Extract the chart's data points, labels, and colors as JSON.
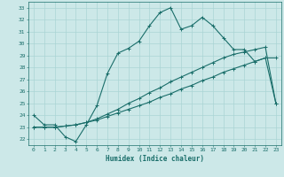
{
  "xlabel": "Humidex (Indice chaleur)",
  "xlim": [
    -0.5,
    23.5
  ],
  "ylim": [
    21.5,
    33.5
  ],
  "xticks": [
    0,
    1,
    2,
    3,
    4,
    5,
    6,
    7,
    8,
    9,
    10,
    11,
    12,
    13,
    14,
    15,
    16,
    17,
    18,
    19,
    20,
    21,
    22,
    23
  ],
  "yticks": [
    22,
    23,
    24,
    25,
    26,
    27,
    28,
    29,
    30,
    31,
    32,
    33
  ],
  "bg_color": "#cce8e8",
  "line_color": "#1a6e6a",
  "grid_color": "#aad4d4",
  "curve1_x": [
    0,
    1,
    2,
    3,
    4,
    5,
    6,
    7,
    8,
    9,
    10,
    11,
    12,
    13,
    14,
    15,
    16,
    17,
    18,
    19,
    20,
    21,
    22,
    23
  ],
  "curve1_y": [
    24.0,
    23.2,
    23.2,
    22.2,
    21.8,
    23.2,
    24.8,
    27.5,
    29.2,
    29.6,
    30.2,
    31.5,
    32.6,
    33.0,
    31.2,
    31.5,
    32.2,
    31.5,
    30.5,
    29.5,
    29.5,
    28.5,
    28.8,
    28.8
  ],
  "curve2_x": [
    0,
    1,
    2,
    3,
    4,
    5,
    6,
    7,
    8,
    9,
    10,
    11,
    12,
    13,
    14,
    15,
    16,
    17,
    18,
    19,
    20,
    21,
    22,
    23
  ],
  "curve2_y": [
    23.0,
    23.0,
    23.0,
    23.1,
    23.2,
    23.4,
    23.6,
    23.9,
    24.2,
    24.5,
    24.8,
    25.1,
    25.5,
    25.8,
    26.2,
    26.5,
    26.9,
    27.2,
    27.6,
    27.9,
    28.2,
    28.5,
    28.8,
    25.0
  ],
  "curve3_x": [
    0,
    1,
    2,
    3,
    4,
    5,
    6,
    7,
    8,
    9,
    10,
    11,
    12,
    13,
    14,
    15,
    16,
    17,
    18,
    19,
    20,
    21,
    22,
    23
  ],
  "curve3_y": [
    23.0,
    23.0,
    23.0,
    23.1,
    23.2,
    23.4,
    23.7,
    24.1,
    24.5,
    25.0,
    25.4,
    25.9,
    26.3,
    26.8,
    27.2,
    27.6,
    28.0,
    28.4,
    28.8,
    29.1,
    29.3,
    29.5,
    29.7,
    25.0
  ]
}
